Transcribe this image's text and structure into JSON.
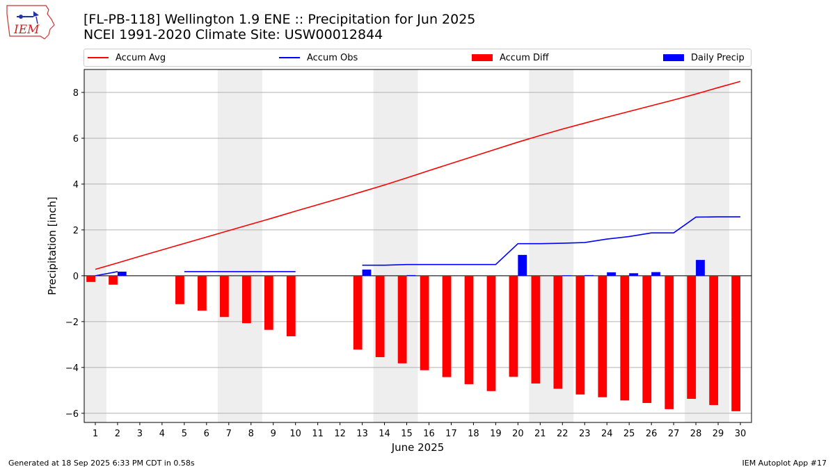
{
  "header": {
    "logo_text": "IEM",
    "title_line1": "[FL-PB-118] Wellington 1.9 ENE :: Precipitation for Jun 2025",
    "title_line2": "NCEI 1991-2020 Climate Site: USW00012844"
  },
  "legend": [
    {
      "label": "Accum Avg",
      "color": "#ff0000",
      "kind": "line"
    },
    {
      "label": "Accum Obs",
      "color": "#0000ff",
      "kind": "line"
    },
    {
      "label": "Accum Diff",
      "color": "#ff0000",
      "kind": "bar"
    },
    {
      "label": "Daily Precip",
      "color": "#0000ff",
      "kind": "bar"
    }
  ],
  "chart_data": {
    "type": "bar",
    "xlabel": "June 2025",
    "ylabel": "Precipitation [inch]",
    "x": [
      1,
      2,
      3,
      4,
      5,
      6,
      7,
      8,
      9,
      10,
      11,
      12,
      13,
      14,
      15,
      16,
      17,
      18,
      19,
      20,
      21,
      22,
      23,
      24,
      25,
      26,
      27,
      28,
      29,
      30
    ],
    "xlim": [
      0.5,
      30.5
    ],
    "ylim": [
      -6.4,
      9.0
    ],
    "yticks": [
      8,
      6,
      4,
      2,
      0,
      -2,
      -4,
      -6
    ],
    "ytick_labels": [
      "8",
      "6",
      "4",
      "2",
      "0",
      "−2",
      "−4",
      "−6"
    ],
    "grid": "horizontal",
    "weekend_shading": [
      [
        0.5,
        1.5
      ],
      [
        6.5,
        8.5
      ],
      [
        13.5,
        15.5
      ],
      [
        20.5,
        22.5
      ],
      [
        27.5,
        29.5
      ]
    ],
    "series": [
      {
        "name": "Accum Avg",
        "kind": "line",
        "color": "#ff0000",
        "values": [
          0.28,
          0.56,
          0.85,
          1.13,
          1.41,
          1.69,
          1.97,
          2.25,
          2.53,
          2.82,
          3.1,
          3.38,
          3.67,
          3.96,
          4.27,
          4.59,
          4.9,
          5.21,
          5.52,
          5.83,
          6.12,
          6.4,
          6.66,
          6.92,
          7.17,
          7.42,
          7.67,
          7.93,
          8.21,
          8.48
        ]
      },
      {
        "name": "Accum Obs",
        "kind": "line",
        "color": "#0000ff",
        "values": [
          0.0,
          0.18,
          null,
          null,
          0.18,
          0.18,
          0.18,
          0.18,
          0.18,
          0.18,
          null,
          null,
          0.46,
          0.46,
          0.49,
          0.49,
          0.49,
          0.49,
          0.49,
          1.4,
          1.4,
          1.42,
          1.45,
          1.6,
          1.71,
          1.87,
          1.87,
          2.56,
          2.57,
          2.57
        ]
      },
      {
        "name": "Accum Diff",
        "kind": "bar",
        "color": "#ff0000",
        "values": [
          -0.27,
          -0.39,
          null,
          null,
          -1.24,
          -1.52,
          -1.8,
          -2.07,
          -2.36,
          -2.64,
          null,
          null,
          -3.22,
          -3.55,
          -3.82,
          -4.12,
          -4.42,
          -4.73,
          -5.03,
          -4.41,
          -4.7,
          -4.93,
          -5.18,
          -5.3,
          -5.44,
          -5.55,
          -5.82,
          -5.37,
          -5.64,
          -5.91
        ]
      },
      {
        "name": "Daily Precip",
        "kind": "bar",
        "color": "#0000ff",
        "values": [
          0.0,
          0.18,
          null,
          null,
          0.0,
          0.0,
          0.0,
          0.0,
          0.0,
          0.0,
          null,
          null,
          0.27,
          0.0,
          0.03,
          0.0,
          0.0,
          0.0,
          0.0,
          0.91,
          0.0,
          0.02,
          0.03,
          0.15,
          0.11,
          0.16,
          0.0,
          0.69,
          0.0,
          0.0
        ]
      }
    ]
  },
  "footer": {
    "left": "Generated at 18 Sep 2025 6:33 PM CDT in 0.58s",
    "right": "IEM Autoplot App #17"
  }
}
